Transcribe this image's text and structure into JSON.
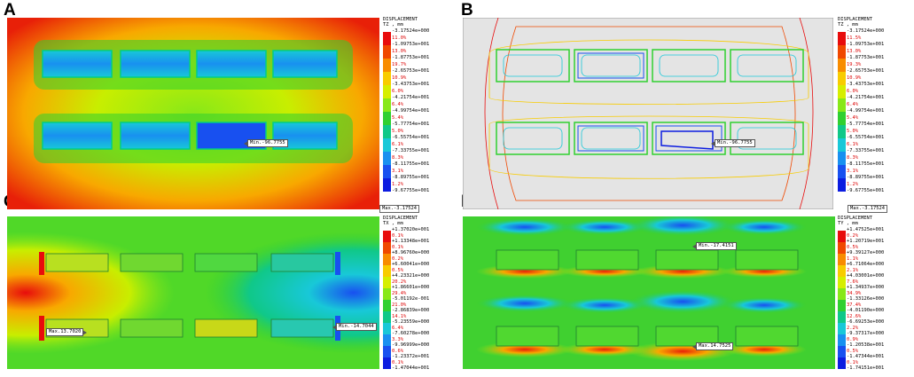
{
  "panels": [
    {
      "id": "A",
      "title": "DISPLACEMENT",
      "subtitle": "TZ , mm",
      "values": [
        "-3.17524e+000",
        "-1.09753e+001",
        "-1.87753e+001",
        "-2.65753e+001",
        "-3.43753e+001",
        "-4.21754e+001",
        "-4.99754e+001",
        "-5.77754e+001",
        "-6.55754e+001",
        "-7.33755e+001",
        "-8.11755e+001",
        "-8.89755e+001",
        "-9.67755e+001"
      ],
      "percents": [
        "11.0%",
        "13.0%",
        "19.7%",
        "10.9%",
        "6.0%",
        "6.4%",
        "5.4%",
        "5.0%",
        "6.1%",
        "8.3%",
        "3.1%",
        "1.2%"
      ],
      "colors": [
        "#e80c0c",
        "#f04800",
        "#f88c00",
        "#f8cc00",
        "#d6ee00",
        "#88e818",
        "#30d030",
        "#10c888",
        "#18c8d8",
        "#1890f0",
        "#1850f0",
        "#0c1ce0"
      ],
      "marker": "Min.-96.7755",
      "footer": "Max.-3.17524"
    },
    {
      "id": "B",
      "title": "DISPLACEMENT",
      "subtitle": "TZ , mm",
      "values": [
        "-3.17524e+000",
        "-1.09753e+001",
        "-1.87753e+001",
        "-2.65753e+001",
        "-3.43753e+001",
        "-4.21754e+001",
        "-4.99754e+001",
        "-5.77754e+001",
        "-6.55754e+001",
        "-7.33755e+001",
        "-8.11755e+001",
        "-8.89755e+001",
        "-9.67755e+001"
      ],
      "percents": [
        "11.5%",
        "13.0%",
        "19.3%",
        "10.9%",
        "6.0%",
        "6.4%",
        "5.4%",
        "5.0%",
        "6.1%",
        "8.3%",
        "3.1%",
        "1.2%"
      ],
      "colors": [
        "#e80c0c",
        "#f04800",
        "#f88c00",
        "#f8cc00",
        "#d6ee00",
        "#88e818",
        "#30d030",
        "#10c888",
        "#18c8d8",
        "#1890f0",
        "#1850f0",
        "#0c1ce0"
      ],
      "marker": "Min.-96.7755",
      "footer": "Max.-3.17524"
    },
    {
      "id": "C",
      "title": "DISPLACEMENT",
      "subtitle": "TX , mm",
      "values": [
        "+1.37020e+001",
        "+1.13348e+001",
        "+8.96760e+000",
        "+6.60041e+000",
        "+4.23321e+000",
        "+1.86601e+000",
        "-5.01192e-001",
        "-2.86839e+000",
        "-5.23559e+000",
        "-7.60278e+000",
        "-9.96999e+000",
        "-1.23372e+001",
        "-1.47044e+001"
      ],
      "percents": [
        "0.1%",
        "0.1%",
        "0.2%",
        "0.5%",
        "20.2%",
        "29.4%",
        "21.0%",
        "14.1%",
        "6.4%",
        "3.3%",
        "0.6%",
        "0.1%"
      ],
      "colors": [
        "#e80c0c",
        "#f04800",
        "#f88c00",
        "#f8cc00",
        "#d6ee00",
        "#88e818",
        "#30d030",
        "#10c888",
        "#18c8d8",
        "#1890f0",
        "#1850f0",
        "#0c1ce0"
      ],
      "marker_max": "Max.13.7020",
      "marker_min": "Min.-14.7044"
    },
    {
      "id": "D",
      "title": "DISPLACEMENT",
      "subtitle": "TY , mm",
      "values": [
        "+1.47525e+001",
        "+1.20719e+001",
        "+9.39127e+000",
        "+6.71064e+000",
        "+4.03001e+000",
        "+1.34937e+000",
        "-1.33126e+000",
        "-4.01190e+000",
        "-6.69253e+000",
        "-9.37317e+000",
        "-1.20538e+001",
        "-1.47344e+001",
        "-1.74151e+001"
      ],
      "percents": [
        "0.2%",
        "0.5%",
        "1.1%",
        "2.1%",
        "7.6%",
        "34.9%",
        "37.4%",
        "12.6%",
        "2.2%",
        "0.9%",
        "0.5%",
        "0.1%"
      ],
      "colors": [
        "#e80c0c",
        "#f04800",
        "#f88c00",
        "#f8cc00",
        "#d6ee00",
        "#88e818",
        "#30d030",
        "#10c888",
        "#18c8d8",
        "#1890f0",
        "#1850f0",
        "#0c1ce0"
      ],
      "marker_min": "Min.-17.4151",
      "marker_max": "Max.14.7525"
    }
  ]
}
